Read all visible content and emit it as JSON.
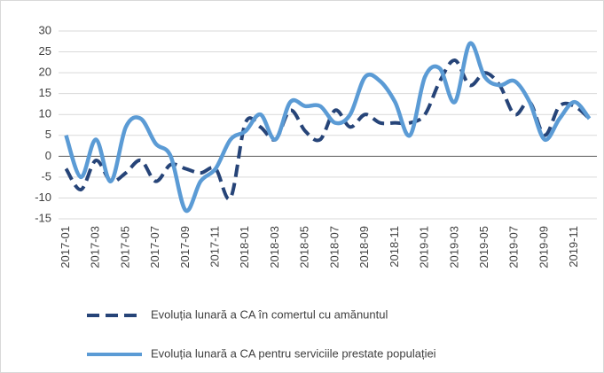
{
  "chart_data": {
    "type": "line",
    "categories": [
      "2017-01",
      null,
      "2017-03",
      null,
      "2017-05",
      null,
      "2017-07",
      null,
      "2017-09",
      null,
      "2017-11",
      null,
      "2018-01",
      null,
      "2018-03",
      null,
      "2018-05",
      null,
      "2018-07",
      null,
      "2018-09",
      null,
      "2018-11",
      null,
      "2019-01",
      null,
      "2019-03",
      null,
      "2019-05",
      null,
      "2019-07",
      null,
      "2019-09",
      null,
      "2019-11",
      null
    ],
    "series": [
      {
        "name": "Evoluția lunară a CA în comertul cu amănuntul",
        "color": "#264478",
        "dash": true,
        "values": [
          -3,
          -8,
          -1,
          -6,
          -4,
          -1,
          -6,
          -2,
          -3,
          -4,
          -3,
          -10,
          8,
          7,
          4,
          11,
          6,
          4,
          11,
          7,
          10,
          8,
          8,
          8,
          10,
          18,
          23,
          17,
          20,
          17,
          10,
          13,
          5,
          12,
          12,
          9
        ]
      },
      {
        "name": "Evoluția lunară a CA pentru serviciile prestate populației",
        "color": "#5b9bd5",
        "dash": false,
        "values": [
          5,
          -5,
          4,
          -6,
          7,
          9,
          3,
          0,
          -13,
          -6,
          -3,
          4,
          6,
          10,
          4,
          13,
          12,
          12,
          8,
          10,
          19,
          18,
          13,
          5,
          19,
          21,
          13,
          27,
          19,
          17,
          18,
          13,
          4,
          9,
          13,
          9
        ]
      }
    ],
    "ylim": [
      -15,
      30
    ],
    "yticks": [
      -15,
      -10,
      -5,
      0,
      5,
      10,
      15,
      20,
      25,
      30
    ],
    "grid": true
  }
}
